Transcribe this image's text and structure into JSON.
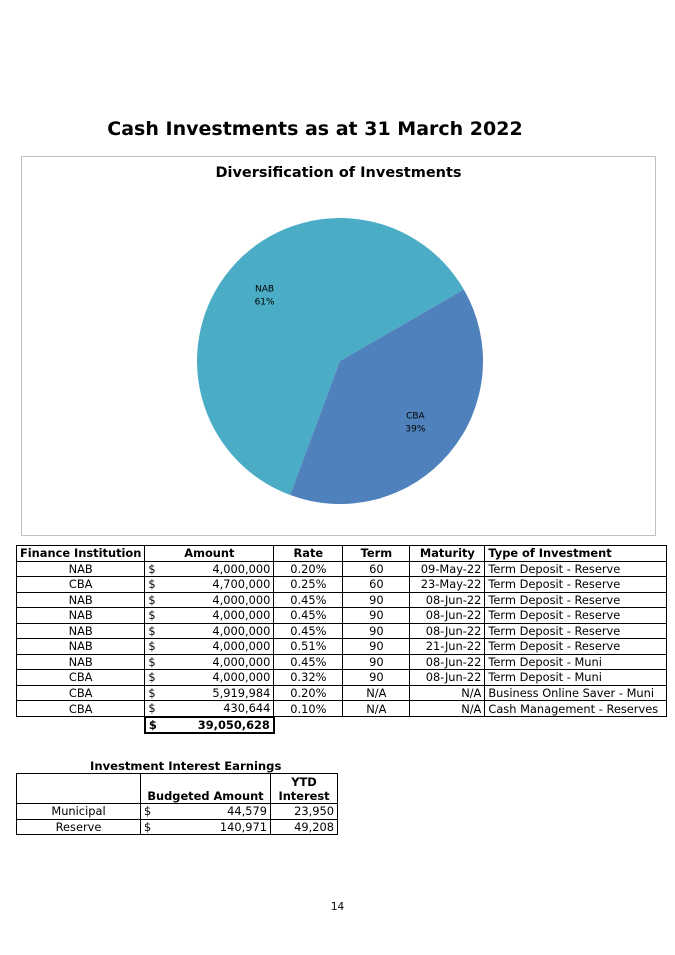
{
  "page": {
    "title": "Cash Investments as at 31 March 2022",
    "page_number": "14"
  },
  "chart": {
    "title": "Diversification of Investments",
    "colors": {
      "NAB": "#4bacc6",
      "CBA": "#4f81bd",
      "border": "#bfbfbf"
    }
  },
  "chart_data": {
    "type": "pie",
    "title": "Diversification of Investments",
    "categories": [
      "NAB",
      "CBA"
    ],
    "values": [
      61,
      39
    ],
    "labels": [
      {
        "name": "NAB",
        "pct": "61%"
      },
      {
        "name": "CBA",
        "pct": "39%"
      }
    ]
  },
  "investments": {
    "headers": {
      "institution": "Finance Institution",
      "amount": "Amount",
      "rate": "Rate",
      "term": "Term",
      "maturity": "Maturity",
      "type": "Type of Investment"
    },
    "rows": [
      {
        "institution": "NAB",
        "currency": "$",
        "amount": "4,000,000",
        "rate": "0.20%",
        "term": "60",
        "maturity": "09-May-22",
        "type": "Term Deposit - Reserve"
      },
      {
        "institution": "CBA",
        "currency": "$",
        "amount": "4,700,000",
        "rate": "0.25%",
        "term": "60",
        "maturity": "23-May-22",
        "type": "Term Deposit - Reserve"
      },
      {
        "institution": "NAB",
        "currency": "$",
        "amount": "4,000,000",
        "rate": "0.45%",
        "term": "90",
        "maturity": "08-Jun-22",
        "type": "Term Deposit - Reserve"
      },
      {
        "institution": "NAB",
        "currency": "$",
        "amount": "4,000,000",
        "rate": "0.45%",
        "term": "90",
        "maturity": "08-Jun-22",
        "type": "Term Deposit - Reserve"
      },
      {
        "institution": "NAB",
        "currency": "$",
        "amount": "4,000,000",
        "rate": "0.45%",
        "term": "90",
        "maturity": "08-Jun-22",
        "type": "Term Deposit - Reserve"
      },
      {
        "institution": "NAB",
        "currency": "$",
        "amount": "4,000,000",
        "rate": "0.51%",
        "term": "90",
        "maturity": "21-Jun-22",
        "type": "Term Deposit - Reserve"
      },
      {
        "institution": "NAB",
        "currency": "$",
        "amount": "4,000,000",
        "rate": "0.45%",
        "term": "90",
        "maturity": "08-Jun-22",
        "type": "Term Deposit - Muni"
      },
      {
        "institution": "CBA",
        "currency": "$",
        "amount": "4,000,000",
        "rate": "0.32%",
        "term": "90",
        "maturity": "08-Jun-22",
        "type": "Term Deposit - Muni"
      },
      {
        "institution": "CBA",
        "currency": "$",
        "amount": "5,919,984",
        "rate": "0.20%",
        "term": "N/A",
        "maturity": "N/A",
        "type": "Business Online Saver - Muni"
      },
      {
        "institution": "CBA",
        "currency": "$",
        "amount": "430,644",
        "rate": "0.10%",
        "term": "N/A",
        "maturity": "N/A",
        "type": "Cash Management - Reserves"
      }
    ],
    "total": {
      "currency": "$",
      "amount": "39,050,628"
    }
  },
  "earnings": {
    "caption": "Investment Interest Earnings",
    "headers": {
      "budget": "Budgeted Amount",
      "ytd_line1": "YTD",
      "ytd_line2": "Interest"
    },
    "rows": [
      {
        "name": "Municipal",
        "currency": "$",
        "budget": "44,579",
        "ytd": "23,950"
      },
      {
        "name": "Reserve",
        "currency": "$",
        "budget": "140,971",
        "ytd": "49,208"
      }
    ]
  }
}
